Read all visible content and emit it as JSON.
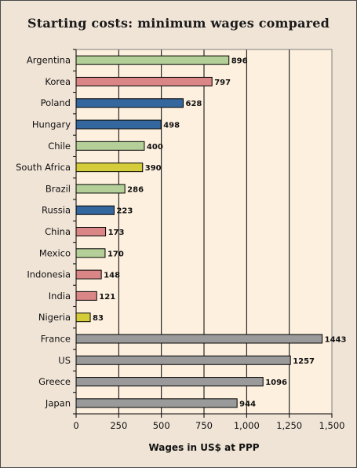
{
  "chart_data": {
    "type": "bar",
    "orientation": "horizontal",
    "title": "Starting costs: minimum wages compared",
    "xlabel": "Wages in US$ at PPP",
    "ylabel": "",
    "xlim": [
      0,
      1500
    ],
    "ticks": [
      0,
      250,
      500,
      750,
      1000,
      1250,
      1500
    ],
    "tick_labels": [
      "0",
      "250",
      "500",
      "750",
      "1,000",
      "1,250",
      "1,500"
    ],
    "grid": true,
    "legend": "none",
    "colors": {
      "green": "#b5cf98",
      "red": "#db8686",
      "blue": "#35679f",
      "yellow": "#d4cc3a",
      "grey": "#9a9a9a",
      "plot_bg": "#fdf0df"
    },
    "bars": [
      {
        "label": "Argentina",
        "value": 896,
        "color": "green"
      },
      {
        "label": "Korea",
        "value": 797,
        "color": "red"
      },
      {
        "label": "Poland",
        "value": 628,
        "color": "blue"
      },
      {
        "label": "Hungary",
        "value": 498,
        "color": "blue"
      },
      {
        "label": "Chile",
        "value": 400,
        "color": "green"
      },
      {
        "label": "South Africa",
        "value": 390,
        "color": "yellow"
      },
      {
        "label": "Brazil",
        "value": 286,
        "color": "green"
      },
      {
        "label": "Russia",
        "value": 223,
        "color": "blue"
      },
      {
        "label": "China",
        "value": 173,
        "color": "red"
      },
      {
        "label": "Mexico",
        "value": 170,
        "color": "green"
      },
      {
        "label": "Indonesia",
        "value": 148,
        "color": "red"
      },
      {
        "label": "India",
        "value": 121,
        "color": "red"
      },
      {
        "label": "Nigeria",
        "value": 83,
        "color": "yellow"
      },
      {
        "label": "France",
        "value": 1443,
        "color": "grey"
      },
      {
        "label": "US",
        "value": 1257,
        "color": "grey"
      },
      {
        "label": "Greece",
        "value": 1096,
        "color": "grey"
      },
      {
        "label": "Japan",
        "value": 944,
        "color": "grey"
      }
    ]
  }
}
